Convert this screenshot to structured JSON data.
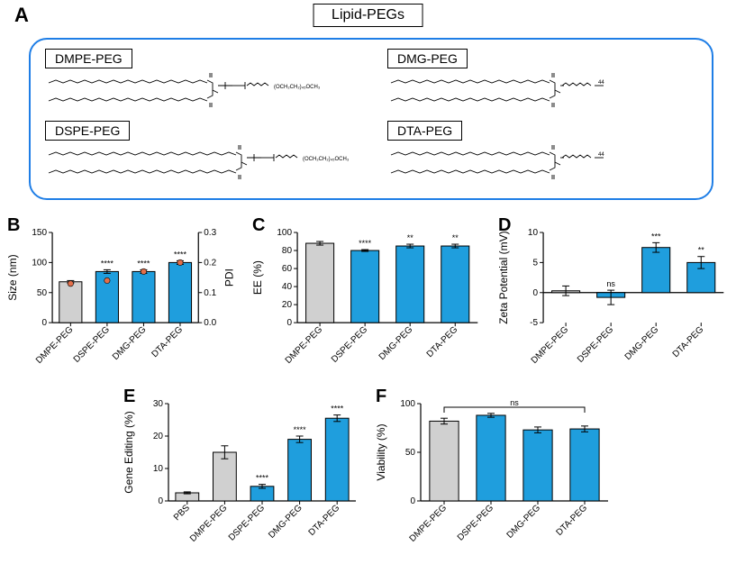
{
  "colors": {
    "bar_control": "#d0d0d0",
    "bar_treat": "#1f9edd",
    "bar_stroke": "#000000",
    "pdi_marker": "#e36f4a",
    "axis": "#000000",
    "bg": "#ffffff",
    "panelA_border": "#1f7ee6"
  },
  "panelA": {
    "title": "Lipid-PEGs",
    "structs": [
      {
        "label": "DMPE-PEG"
      },
      {
        "label": "DMG-PEG"
      },
      {
        "label": "DSPE-PEG"
      },
      {
        "label": "DTA-PEG"
      }
    ]
  },
  "chartB": {
    "letter": "B",
    "ylabel": "Size (nm)",
    "y2label": "PDI",
    "ylim": [
      0,
      150
    ],
    "ytick_step": 50,
    "y2lim": [
      0,
      0.3
    ],
    "y2tick_step": 0.1,
    "categories": [
      "DMPE-PEG",
      "DSPE-PEG",
      "DMG-PEG",
      "DTA-PEG"
    ],
    "size_values": [
      68,
      85,
      85,
      100
    ],
    "size_err": [
      2,
      3,
      3,
      3
    ],
    "size_sig": [
      "",
      "****",
      "****",
      "****"
    ],
    "pdi_values": [
      0.13,
      0.14,
      0.17,
      0.2
    ],
    "bar_colors": [
      "control",
      "treat",
      "treat",
      "treat"
    ]
  },
  "chartC": {
    "letter": "C",
    "ylabel": "EE (%)",
    "ylim": [
      0,
      100
    ],
    "ytick_step": 20,
    "categories": [
      "DMPE-PEG",
      "DSPE-PEG",
      "DMG-PEG",
      "DTA-PEG"
    ],
    "values": [
      88,
      80,
      85,
      85
    ],
    "err": [
      2,
      1,
      2,
      2
    ],
    "sig": [
      "",
      "****",
      "**",
      "**"
    ],
    "bar_colors": [
      "control",
      "treat",
      "treat",
      "treat"
    ]
  },
  "chartD": {
    "letter": "D",
    "ylabel": "Zeta Potential (mV)",
    "ylim": [
      -5,
      10
    ],
    "ytick_step": 5,
    "categories": [
      "DMPE-PEG",
      "DSPE-PEG",
      "DMG-PEG",
      "DTA-PEG"
    ],
    "values": [
      0.3,
      -0.8,
      7.5,
      5.0
    ],
    "err": [
      0.8,
      1.2,
      0.8,
      1.0
    ],
    "sig": [
      "",
      "ns",
      "***",
      "**"
    ],
    "bar_colors": [
      "control",
      "treat",
      "treat",
      "treat"
    ]
  },
  "chartE": {
    "letter": "E",
    "ylabel": "Gene Editing (%)",
    "ylim": [
      0,
      30
    ],
    "ytick_step": 10,
    "categories": [
      "PBS",
      "DMPE-PEG",
      "DSPE-PEG",
      "DMG-PEG",
      "DTA-PEG"
    ],
    "values": [
      2.5,
      15,
      4.5,
      19,
      25.5
    ],
    "err": [
      0.3,
      2,
      0.6,
      1,
      1
    ],
    "sig": [
      "",
      "",
      "****",
      "****",
      "****"
    ],
    "bar_colors": [
      "control",
      "control",
      "treat",
      "treat",
      "treat"
    ]
  },
  "chartF": {
    "letter": "F",
    "ylabel": "Viability (%)",
    "ylim": [
      0,
      100
    ],
    "ytick_step": 50,
    "categories": [
      "DMPE-PEG",
      "DSPE-PEG",
      "DMG-PEG",
      "DTA-PEG"
    ],
    "values": [
      82,
      88,
      73,
      74
    ],
    "err": [
      3,
      2,
      3,
      3
    ],
    "sig_bracket": "ns",
    "bar_colors": [
      "control",
      "treat",
      "treat",
      "treat"
    ]
  }
}
